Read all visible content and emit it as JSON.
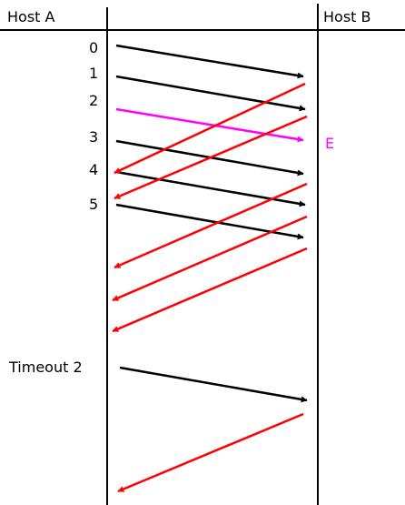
{
  "hosts": {
    "a": "Host A",
    "b": "Host B"
  },
  "segment_labels": [
    "0",
    "1",
    "2",
    "3",
    "4",
    "5"
  ],
  "timeout_label": "Timeout 2",
  "error_label": "E",
  "colors": {
    "line": "#000000",
    "data_arrow": "#000000",
    "ack_arrow": "#ff0000",
    "lost_arrow": "#ff00ff",
    "error_text": "#ff00ff"
  }
}
